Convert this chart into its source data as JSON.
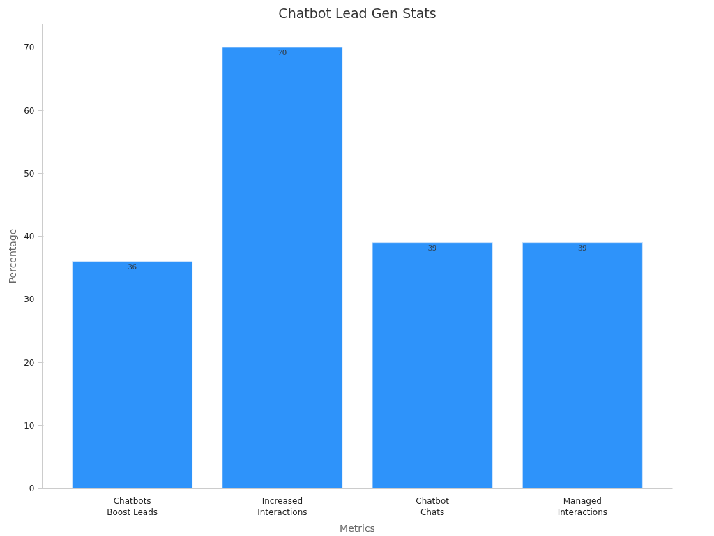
{
  "chart_data": {
    "type": "bar",
    "title": "Chatbot Lead Gen Stats",
    "xlabel": "Metrics",
    "ylabel": "Percentage",
    "categories": [
      "Chatbots\nBoost Leads",
      "Increased\nInteractions",
      "Chatbot\nChats",
      "Managed\nInteractions"
    ],
    "values": [
      36,
      70,
      39,
      39
    ],
    "color": "#2e93fa",
    "ylim": [
      0,
      73.7
    ],
    "yticks": [
      0,
      10,
      20,
      30,
      40,
      50,
      60,
      70
    ],
    "grid": false,
    "data_labels": true
  }
}
